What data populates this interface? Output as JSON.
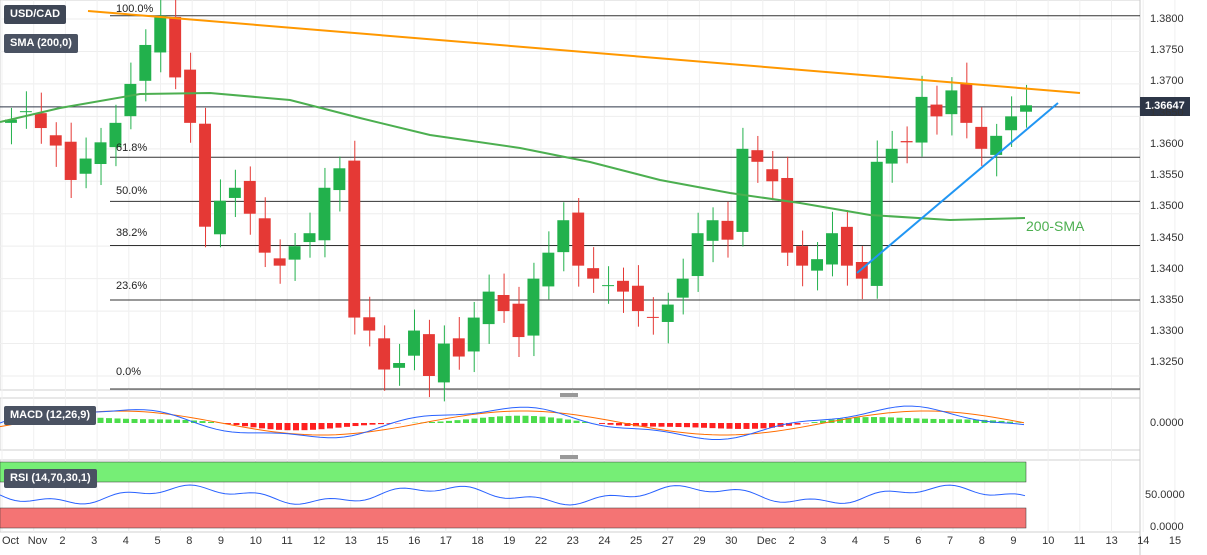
{
  "symbol": "USD/CAD",
  "indicator_sma": "SMA (200,0)",
  "indicator_macd": "MACD (12,26,9)",
  "indicator_rsi": "RSI (14,70,30,1)",
  "current_price": "1.36647",
  "annotation": "200-SMA",
  "colors": {
    "up": "#22b14c",
    "down": "#e53935",
    "trend_resistance": "#ff9800",
    "trend_support": "#2196f3",
    "sma": "#4caf50",
    "macd": "#2962ff",
    "signal": "#ff6d00",
    "rsi_over": "#76ee76",
    "rsi_under": "#f47474"
  },
  "fib_levels": [
    {
      "label": "100.0%",
      "price": 1.3805
    },
    {
      "label": "61.8%",
      "price": 1.3587
    },
    {
      "label": "50.0%",
      "price": 1.3519
    },
    {
      "label": "38.2%",
      "price": 1.3451
    },
    {
      "label": "23.6%",
      "price": 1.3367
    },
    {
      "label": "0.0%",
      "price": 1.323
    }
  ],
  "price_axis": [
    "1.3800",
    "1.3750",
    "1.3700",
    "1.3650",
    "1.3600",
    "1.3550",
    "1.3500",
    "1.3450",
    "1.3400",
    "1.3350",
    "1.3300",
    "1.3250"
  ],
  "macd_axis": [
    "0.0000"
  ],
  "rsi_axis": [
    "50.0000",
    "0.0000"
  ],
  "x_axis": [
    "Oct",
    "Nov",
    "2",
    "3",
    "4",
    "5",
    "8",
    "9",
    "10",
    "11",
    "12",
    "13",
    "15",
    "16",
    "17",
    "18",
    "19",
    "22",
    "23",
    "24",
    "25",
    "27",
    "29",
    "30",
    "Dec",
    "2",
    "3",
    "4",
    "5",
    "6",
    "7",
    "8",
    "9",
    "10",
    "11",
    "13",
    "14",
    "15"
  ],
  "chart_data": {
    "type": "candlestick",
    "title": "USD/CAD",
    "ylim": [
      1.322,
      1.382
    ],
    "series_close": [
      1.3645,
      1.3658,
      1.3632,
      1.3605,
      1.3552,
      1.3585,
      1.361,
      1.364,
      1.37,
      1.376,
      1.3805,
      1.371,
      1.364,
      1.348,
      1.352,
      1.354,
      1.35,
      1.344,
      1.342,
      1.345,
      1.347,
      1.354,
      1.357,
      1.334,
      1.332,
      1.326,
      1.327,
      1.332,
      1.325,
      1.33,
      1.328,
      1.334,
      1.338,
      1.335,
      1.331,
      1.34,
      1.344,
      1.349,
      1.342,
      1.34,
      1.339,
      1.338,
      1.335,
      1.334,
      1.336,
      1.34,
      1.347,
      1.349,
      1.346,
      1.36,
      1.358,
      1.355,
      1.344,
      1.342,
      1.343,
      1.347,
      1.342,
      1.34,
      1.358,
      1.36,
      1.361,
      1.368,
      1.365,
      1.369,
      1.364,
      1.36,
      1.362,
      1.365,
      1.3667
    ]
  }
}
